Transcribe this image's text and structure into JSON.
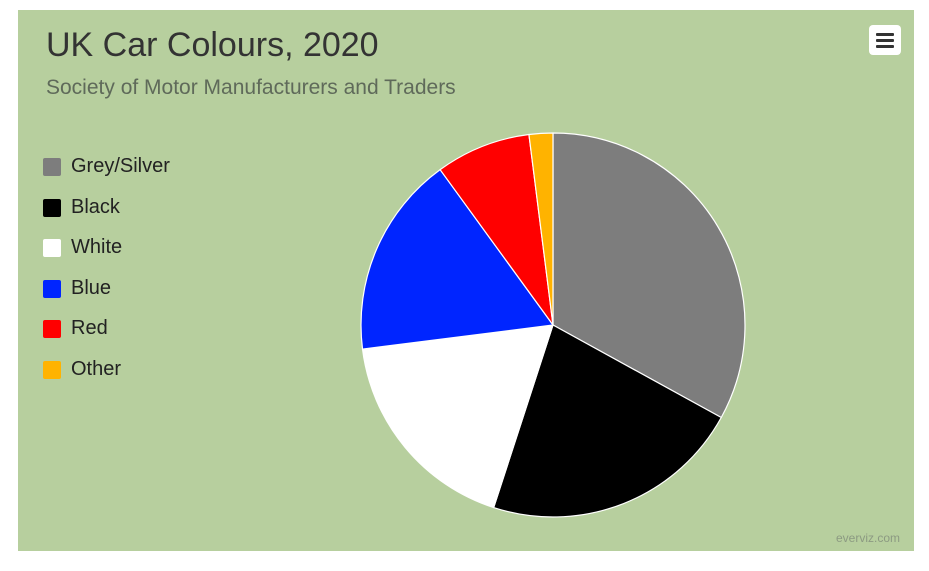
{
  "chart_data": {
    "type": "pie",
    "title": "UK Car Colours, 2020",
    "subtitle": "Society of Motor Manufacturers and Traders",
    "legend_position": "left",
    "categories": [
      "Grey/Silver",
      "Black",
      "White",
      "Blue",
      "Red",
      "Other"
    ],
    "values": [
      33,
      22,
      18,
      17,
      8,
      2
    ],
    "colors": [
      "#7d7d7d",
      "#000000",
      "#ffffff",
      "#0025ff",
      "#ff0000",
      "#ffb300"
    ]
  },
  "menu": {
    "icon": "hamburger-menu-icon"
  },
  "credit": "everviz.com"
}
